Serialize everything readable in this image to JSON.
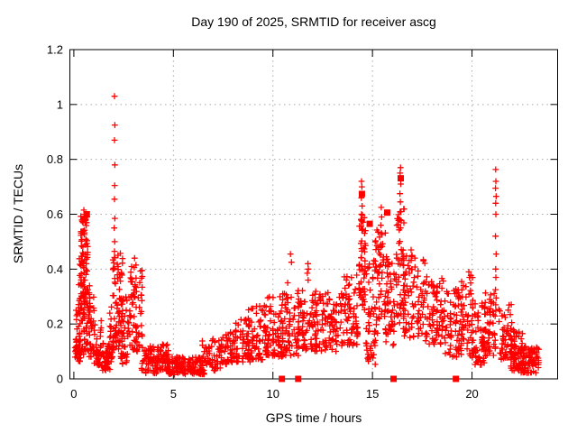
{
  "figure": {
    "title": "Day 190 of 2025, SRMTID for receiver ascg",
    "xlabel": "GPS time / hours",
    "ylabel": "SRMTID / TECUs"
  },
  "chart_data": {
    "type": "scatter",
    "title": "Day 190 of 2025, SRMTID for receiver ascg",
    "xlabel": "GPS time / hours",
    "ylabel": "SRMTID / TECUs",
    "xlim": [
      -0.2,
      24.3
    ],
    "ylim": [
      0,
      1.2
    ],
    "xticks": [
      [
        0,
        "0"
      ],
      [
        5,
        "5"
      ],
      [
        10,
        "10"
      ],
      [
        15,
        "15"
      ],
      [
        20,
        "20"
      ]
    ],
    "yticks": [
      [
        0,
        "0"
      ],
      [
        0.2,
        "0.2"
      ],
      [
        0.4,
        "0.4"
      ],
      [
        0.6,
        "0.6"
      ],
      [
        0.8,
        "0.8"
      ],
      [
        1,
        "1"
      ],
      [
        1.2,
        "1.2"
      ]
    ],
    "grid": true,
    "grid_color": "#a8a8a8",
    "frame_color": "#000000",
    "background": "#ffffff",
    "series": [
      {
        "name": "srmtid-values",
        "marker": "plus",
        "color": "#ff0000",
        "peak_points": [
          [
            2.04,
            1.03
          ],
          [
            2.06,
            0.925
          ],
          [
            2.04,
            0.87
          ],
          [
            2.06,
            0.78
          ],
          [
            2.05,
            0.705
          ],
          [
            2.04,
            0.655
          ],
          [
            2.06,
            0.585
          ],
          [
            2.03,
            0.55
          ],
          [
            2.05,
            0.5
          ],
          [
            2.04,
            0.465
          ],
          [
            0.5,
            0.615
          ],
          [
            0.54,
            0.6
          ],
          [
            0.47,
            0.585
          ],
          [
            0.57,
            0.57
          ],
          [
            3.05,
            0.44
          ],
          [
            3.12,
            0.415
          ],
          [
            10.88,
            0.455
          ],
          [
            10.93,
            0.425
          ],
          [
            10.74,
            0.35
          ],
          [
            11.76,
            0.42
          ],
          [
            11.78,
            0.4
          ],
          [
            11.73,
            0.385
          ],
          [
            11.77,
            0.36
          ],
          [
            14.45,
            0.72
          ],
          [
            14.47,
            0.7
          ],
          [
            14.44,
            0.66
          ],
          [
            14.48,
            0.63
          ],
          [
            14.45,
            0.6
          ],
          [
            14.47,
            0.575
          ],
          [
            15.44,
            0.625
          ],
          [
            15.46,
            0.59
          ],
          [
            15.42,
            0.56
          ],
          [
            16.41,
            0.77
          ],
          [
            16.39,
            0.75
          ],
          [
            16.42,
            0.71
          ],
          [
            16.38,
            0.675
          ],
          [
            16.4,
            0.645
          ],
          [
            16.43,
            0.61
          ],
          [
            16.39,
            0.58
          ],
          [
            16.41,
            0.55
          ],
          [
            16.94,
            0.47
          ],
          [
            16.99,
            0.45
          ],
          [
            19.84,
            0.39
          ],
          [
            19.87,
            0.37
          ],
          [
            21.19,
            0.763
          ],
          [
            21.2,
            0.72
          ],
          [
            21.18,
            0.695
          ],
          [
            21.21,
            0.665
          ],
          [
            21.19,
            0.64
          ],
          [
            21.2,
            0.6
          ],
          [
            21.18,
            0.52
          ],
          [
            21.21,
            0.455
          ],
          [
            21.19,
            0.4
          ],
          [
            21.2,
            0.37
          ],
          [
            21.18,
            0.325
          ],
          [
            21.21,
            0.295
          ],
          [
            21.19,
            0.27
          ],
          [
            21.2,
            0.25
          ]
        ],
        "density_clusters_format": "[x_start, x_end, y_min, y_max, n_points, low_bias_exponent]",
        "density_clusters": [
          [
            0.05,
            0.35,
            0.06,
            0.26,
            40,
            1.6
          ],
          [
            0.22,
            0.55,
            0.08,
            0.45,
            50,
            0.9
          ],
          [
            0.33,
            0.7,
            0.3,
            0.6,
            55,
            0.8
          ],
          [
            0.45,
            0.82,
            0.1,
            0.35,
            40,
            1.1
          ],
          [
            0.75,
            1.05,
            0.08,
            0.35,
            30,
            1.4
          ],
          [
            1.0,
            1.45,
            0.05,
            0.22,
            35,
            1.5
          ],
          [
            1.38,
            1.82,
            0.03,
            0.13,
            45,
            1.2
          ],
          [
            1.78,
            2.0,
            0.06,
            0.28,
            25,
            1.2
          ],
          [
            1.95,
            2.45,
            0.1,
            0.46,
            75,
            0.9
          ],
          [
            2.35,
            2.85,
            0.05,
            0.3,
            40,
            1.4
          ],
          [
            2.8,
            3.45,
            0.1,
            0.44,
            70,
            1.1
          ],
          [
            3.4,
            4.25,
            0.02,
            0.12,
            65,
            1.1
          ],
          [
            4.15,
            4.75,
            0.03,
            0.13,
            45,
            1.3
          ],
          [
            4.6,
            6.55,
            0.015,
            0.08,
            150,
            1.1
          ],
          [
            6.45,
            7.35,
            0.03,
            0.15,
            55,
            1.2
          ],
          [
            7.3,
            8.1,
            0.05,
            0.18,
            55,
            1.2
          ],
          [
            8.0,
            8.85,
            0.06,
            0.23,
            55,
            1.2
          ],
          [
            8.75,
            9.7,
            0.07,
            0.27,
            70,
            1.3
          ],
          [
            9.6,
            10.5,
            0.08,
            0.3,
            70,
            1.3
          ],
          [
            10.4,
            11.3,
            0.08,
            0.32,
            70,
            1.2
          ],
          [
            11.2,
            12.2,
            0.1,
            0.33,
            75,
            1.2
          ],
          [
            12.1,
            13.2,
            0.1,
            0.32,
            85,
            1.2
          ],
          [
            13.1,
            14.28,
            0.12,
            0.38,
            90,
            1.2
          ],
          [
            14.32,
            14.65,
            0.25,
            0.6,
            50,
            0.9
          ],
          [
            14.6,
            15.15,
            0.05,
            0.45,
            55,
            1.1
          ],
          [
            15.1,
            15.65,
            0.15,
            0.55,
            55,
            1.0
          ],
          [
            15.6,
            16.15,
            0.12,
            0.45,
            55,
            1.1
          ],
          [
            16.15,
            16.6,
            0.2,
            0.62,
            45,
            0.9
          ],
          [
            16.55,
            17.65,
            0.15,
            0.45,
            90,
            1.1
          ],
          [
            17.6,
            18.65,
            0.12,
            0.38,
            80,
            1.2
          ],
          [
            18.6,
            19.55,
            0.08,
            0.33,
            70,
            1.2
          ],
          [
            19.45,
            20.05,
            0.08,
            0.38,
            45,
            1.2
          ],
          [
            19.95,
            20.65,
            0.05,
            0.28,
            55,
            1.3
          ],
          [
            20.55,
            21.2,
            0.08,
            0.32,
            55,
            1.2
          ],
          [
            21.35,
            22.05,
            0.07,
            0.28,
            50,
            1.3
          ],
          [
            21.95,
            22.55,
            0.03,
            0.18,
            70,
            1.3
          ],
          [
            22.45,
            23.35,
            0.02,
            0.12,
            80,
            1.2
          ]
        ]
      },
      {
        "name": "event-markers",
        "marker": "filled-square",
        "color": "#ff0000",
        "points": [
          [
            0.65,
            0.6
          ],
          [
            14.47,
            0.674
          ],
          [
            14.86,
            0.565
          ],
          [
            15.74,
            0.606
          ],
          [
            16.42,
            0.731
          ],
          [
            10.45,
            0
          ],
          [
            11.27,
            0
          ],
          [
            16.06,
            0
          ],
          [
            19.19,
            0
          ]
        ]
      }
    ]
  }
}
